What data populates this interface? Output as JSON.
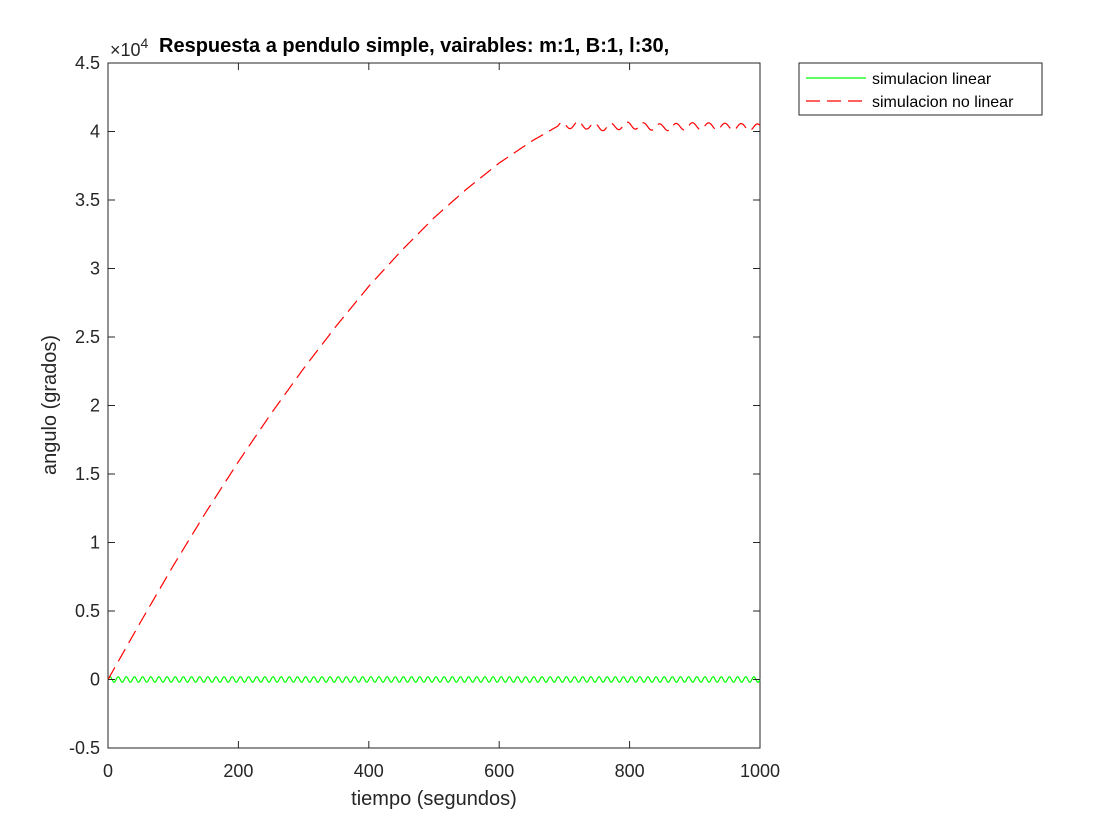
{
  "chart_data": {
    "type": "line",
    "title": "Respuesta a pendulo simple, vairables: m:1, B:1, l:30,",
    "xlabel": "tiempo (segundos)",
    "ylabel": "angulo (grados)",
    "y_exponent_label": "×10",
    "y_exponent_power": "4",
    "xlim": [
      0,
      1000
    ],
    "ylim": [
      -5000,
      45000
    ],
    "xticks": [
      0,
      200,
      400,
      600,
      800,
      1000
    ],
    "xtick_labels": [
      "0",
      "200",
      "400",
      "600",
      "800",
      "1000"
    ],
    "yticks": [
      -5000,
      0,
      5000,
      10000,
      15000,
      20000,
      25000,
      30000,
      35000,
      40000,
      45000
    ],
    "ytick_labels": [
      "-0.5",
      "0",
      "0.5",
      "1",
      "1.5",
      "2",
      "2.5",
      "3",
      "3.5",
      "4",
      "4.5"
    ],
    "grid": false,
    "legend_position": "outside-top-right",
    "series": [
      {
        "name": "simulacion linear",
        "color": "#00ff00",
        "style": "solid",
        "oscillation": {
          "amplitude": 200,
          "period": 12.5,
          "center": 0
        },
        "x": [
          0,
          1000
        ],
        "y": [
          0,
          0
        ]
      },
      {
        "name": "simulacion no linear",
        "color": "#ff0000",
        "style": "dashed",
        "x": [
          0,
          50,
          100,
          150,
          200,
          250,
          300,
          350,
          400,
          450,
          500,
          550,
          600,
          650,
          690,
          720,
          760,
          800,
          850,
          900,
          950,
          1000
        ],
        "y": [
          0,
          4200,
          8300,
          12200,
          15900,
          19400,
          22700,
          25800,
          28700,
          31300,
          33700,
          35800,
          37700,
          39300,
          40400,
          40500,
          40300,
          40450,
          40300,
          40400,
          40350,
          40300
        ],
        "oscillation": {
          "amplitude": 250,
          "period": 25,
          "start": 690
        }
      }
    ]
  }
}
